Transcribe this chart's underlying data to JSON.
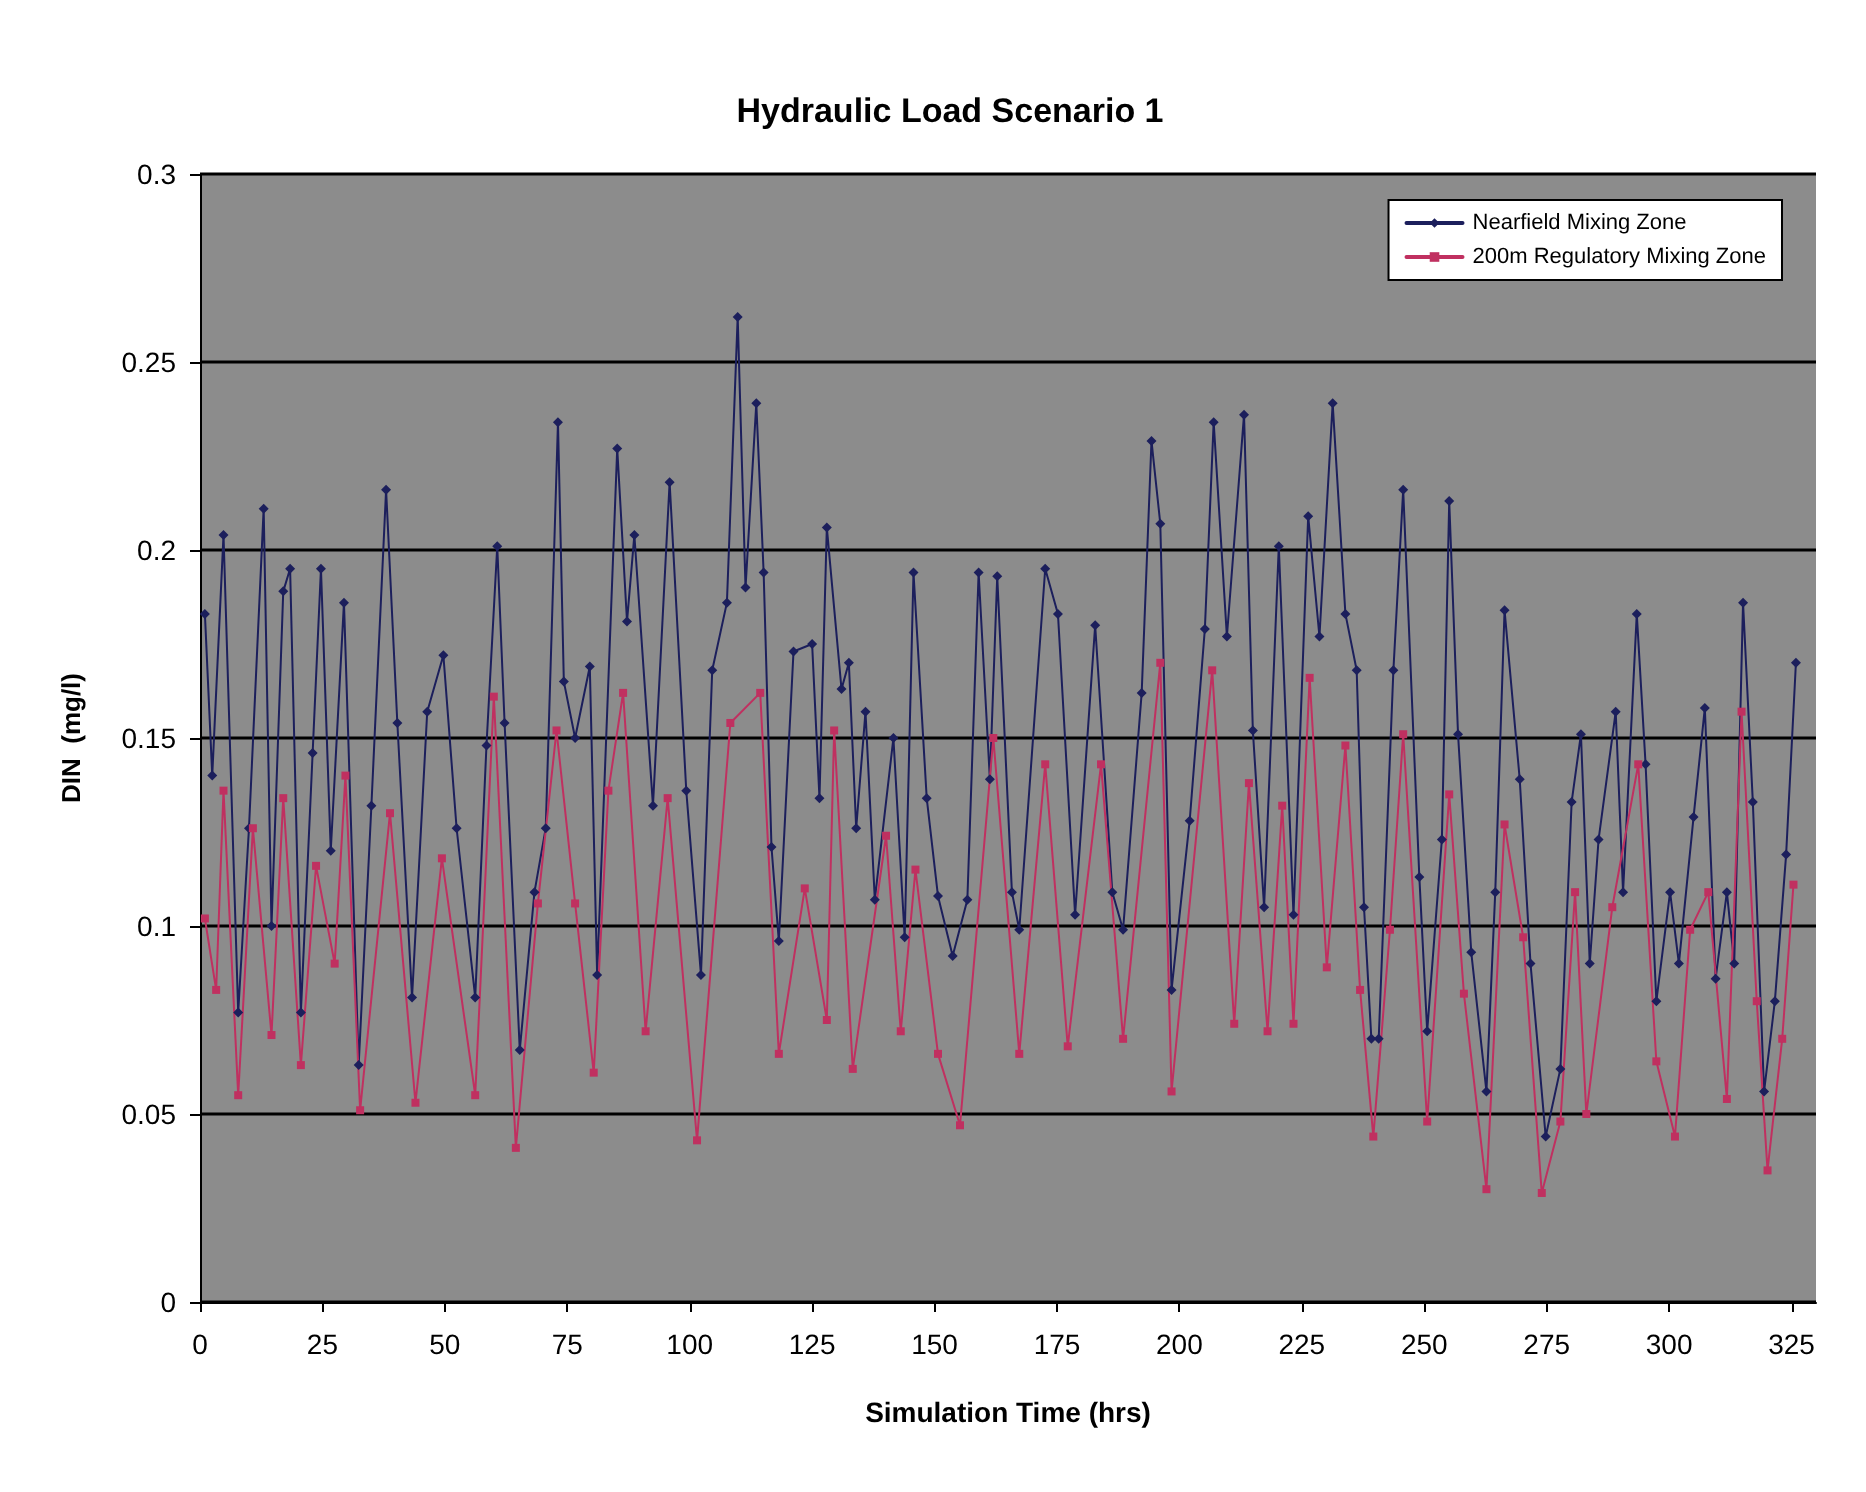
{
  "chart_data": {
    "type": "line",
    "title": "Hydraulic Load Scenario 1",
    "xlabel": "Simulation Time (hrs)",
    "ylabel": "DIN  (mg/l)",
    "xlim": [
      0,
      330
    ],
    "xticks": [
      0,
      25,
      50,
      75,
      100,
      125,
      150,
      175,
      200,
      225,
      250,
      275,
      300,
      325
    ],
    "ylim": [
      0,
      0.3
    ],
    "yticks": [
      0,
      0.05,
      0.1,
      0.15,
      0.2,
      0.25,
      0.3
    ],
    "grid": "y",
    "legend": "top right",
    "line_style": "solid",
    "series": [
      {
        "name": "Nearfield Mixing Zone",
        "color": "#1c1f5c",
        "marker": "diamond",
        "x": [
          1,
          2.5,
          4.8,
          7.8,
          10,
          13,
          14.6,
          17,
          18.4,
          20.6,
          23,
          24.7,
          26.7,
          29.4,
          32.4,
          35,
          38,
          40.3,
          43.3,
          46.4,
          49.7,
          52.4,
          56.2,
          58.5,
          60.7,
          62.2,
          65.3,
          68.3,
          70.6,
          73.1,
          74.3,
          76.6,
          79.6,
          81.1,
          85.2,
          87.2,
          88.7,
          92.5,
          95.9,
          99.3,
          102.3,
          104.6,
          107.6,
          109.8,
          111.4,
          113.6,
          115.1,
          116.7,
          118.2,
          121.2,
          125,
          126.5,
          128,
          131,
          132.5,
          134,
          135.9,
          137.8,
          141.6,
          143.9,
          145.7,
          148.4,
          150.7,
          153.7,
          156.7,
          159,
          161.3,
          162.8,
          165.8,
          167.3,
          172.6,
          175.2,
          178.7,
          182.8,
          186.3,
          188.5,
          192.3,
          194.3,
          196.1,
          198.4,
          202.1,
          205.2,
          207,
          209.7,
          213.2,
          215,
          217.3,
          220.3,
          223.3,
          226.3,
          228.6,
          231.3,
          233.9,
          236.2,
          237.7,
          239.2,
          240.7,
          243.7,
          245.7,
          249,
          250.6,
          253.6,
          255.1,
          256.9,
          259.6,
          262.7,
          264.5,
          266.4,
          269.5,
          271.7,
          274.8,
          277.8,
          280.1,
          282,
          283.8,
          285.6,
          289.1,
          290.6,
          293.4,
          295.2,
          297.4,
          300.2,
          302,
          305,
          307.3,
          309.5,
          311.8,
          313.3,
          315.1,
          317.1,
          319.4,
          321.6,
          323.9,
          325.9
        ],
        "values": [
          0.183,
          0.14,
          0.204,
          0.077,
          0.126,
          0.211,
          0.1,
          0.189,
          0.195,
          0.077,
          0.146,
          0.195,
          0.12,
          0.186,
          0.063,
          0.132,
          0.216,
          0.154,
          0.081,
          0.157,
          0.172,
          0.126,
          0.081,
          0.148,
          0.201,
          0.154,
          0.067,
          0.109,
          0.126,
          0.234,
          0.165,
          0.15,
          0.169,
          0.087,
          0.227,
          0.181,
          0.204,
          0.132,
          0.218,
          0.136,
          0.087,
          0.168,
          0.186,
          0.262,
          0.19,
          0.239,
          0.194,
          0.121,
          0.096,
          0.173,
          0.175,
          0.134,
          0.206,
          0.163,
          0.17,
          0.126,
          0.157,
          0.107,
          0.15,
          0.097,
          0.194,
          0.134,
          0.108,
          0.092,
          0.107,
          0.194,
          0.139,
          0.193,
          0.109,
          0.099,
          0.195,
          0.183,
          0.103,
          0.18,
          0.109,
          0.099,
          0.162,
          0.229,
          0.207,
          0.083,
          0.128,
          0.179,
          0.234,
          0.177,
          0.236,
          0.152,
          0.105,
          0.201,
          0.103,
          0.209,
          0.177,
          0.239,
          0.183,
          0.168,
          0.105,
          0.07,
          0.07,
          0.168,
          0.216,
          0.113,
          0.072,
          0.123,
          0.213,
          0.151,
          0.093,
          0.056,
          0.109,
          0.184,
          0.139,
          0.09,
          0.044,
          0.062,
          0.133,
          0.151,
          0.09,
          0.123,
          0.157,
          0.109,
          0.183,
          0.143,
          0.08,
          0.109,
          0.09,
          0.129,
          0.158,
          0.086,
          0.109,
          0.09,
          0.186,
          0.133,
          0.056,
          0.08,
          0.119,
          0.17
        ]
      },
      {
        "name": "200m Regulatory Mixing Zone",
        "color": "#c03060",
        "marker": "square",
        "x": [
          1,
          3.3,
          4.8,
          7.8,
          10.8,
          14.6,
          17,
          20.6,
          23.7,
          27.5,
          29.7,
          32.7,
          38.8,
          44,
          49.4,
          56.2,
          60,
          64.5,
          69,
          72.8,
          76.6,
          80.4,
          83.4,
          86.4,
          91,
          95.5,
          101.5,
          108.3,
          114.4,
          118.2,
          123.5,
          128,
          129.5,
          133.3,
          140.1,
          143.1,
          146.1,
          150.7,
          155.2,
          162,
          167.3,
          172.6,
          177.2,
          184,
          188.5,
          196.1,
          198.4,
          206.7,
          211.2,
          214.2,
          218,
          221,
          223.3,
          226.6,
          230.1,
          233.9,
          236.9,
          239.6,
          243,
          245.7,
          250.6,
          255.1,
          258.1,
          262.7,
          266.4,
          270.2,
          274,
          277.8,
          280.8,
          283.1,
          288.4,
          293.7,
          297.4,
          301.2,
          304.3,
          308,
          311.8,
          314.8,
          317.9,
          320.1,
          323.1,
          325.4
        ],
        "values": [
          0.102,
          0.083,
          0.136,
          0.055,
          0.126,
          0.071,
          0.134,
          0.063,
          0.116,
          0.09,
          0.14,
          0.051,
          0.13,
          0.053,
          0.118,
          0.055,
          0.161,
          0.041,
          0.106,
          0.152,
          0.106,
          0.061,
          0.136,
          0.162,
          0.072,
          0.134,
          0.043,
          0.154,
          0.162,
          0.066,
          0.11,
          0.075,
          0.152,
          0.062,
          0.124,
          0.072,
          0.115,
          0.066,
          0.047,
          0.15,
          0.066,
          0.143,
          0.068,
          0.143,
          0.07,
          0.17,
          0.056,
          0.168,
          0.074,
          0.138,
          0.072,
          0.132,
          0.074,
          0.166,
          0.089,
          0.148,
          0.083,
          0.044,
          0.099,
          0.151,
          0.048,
          0.135,
          0.082,
          0.03,
          0.127,
          0.097,
          0.029,
          0.048,
          0.109,
          0.05,
          0.105,
          0.143,
          0.064,
          0.044,
          0.099,
          0.109,
          0.054,
          0.157,
          0.08,
          0.035,
          0.07,
          0.111
        ]
      }
    ]
  }
}
